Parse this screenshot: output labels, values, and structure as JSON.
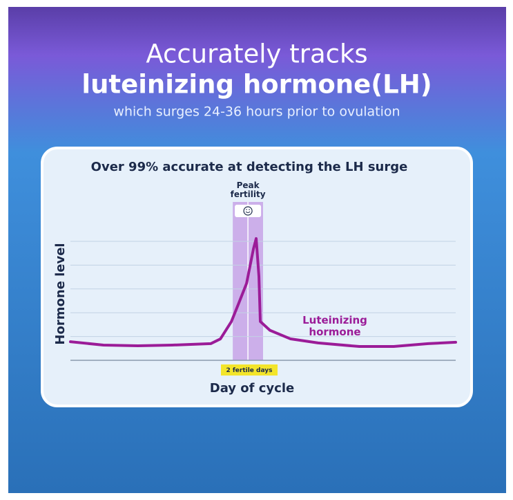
{
  "header": {
    "title_line_1": "Accurately tracks",
    "title_line_2": "luteinizing hormone(LH)",
    "subtitle": "which surges 24-36 hours prior to ovulation"
  },
  "chart_data": {
    "type": "line",
    "title": "Over 99% accurate at detecting the LH surge",
    "y_label": "Hormone level",
    "x_label": "Day of cycle",
    "x": [
      0,
      2.4,
      4.9,
      7.4,
      10.2,
      10.9,
      11.7,
      12.2,
      12.8,
      13.3,
      13.5,
      13.7,
      13.8,
      14.5,
      16,
      18,
      21,
      23.5,
      26,
      28
    ],
    "series": [
      {
        "name": "Luteinizing hormone",
        "color": "#9b1c98",
        "values": [
          0.78,
          0.64,
          0.61,
          0.64,
          0.7,
          0.9,
          1.63,
          2.35,
          3.23,
          4.68,
          5.12,
          3.52,
          1.63,
          1.26,
          0.9,
          0.73,
          0.58,
          0.58,
          0.7,
          0.76
        ]
      }
    ],
    "xlim": [
      0,
      28
    ],
    "ylim": [
      0,
      5.5
    ],
    "yticks": [
      1,
      2,
      3,
      4,
      5
    ],
    "grid": true,
    "highlight": {
      "xlim": [
        11.8,
        14.0
      ],
      "divider": 12.9,
      "color": "#c7a3e6",
      "label": "Peak fertility",
      "band_label": "2 fertile days"
    }
  }
}
